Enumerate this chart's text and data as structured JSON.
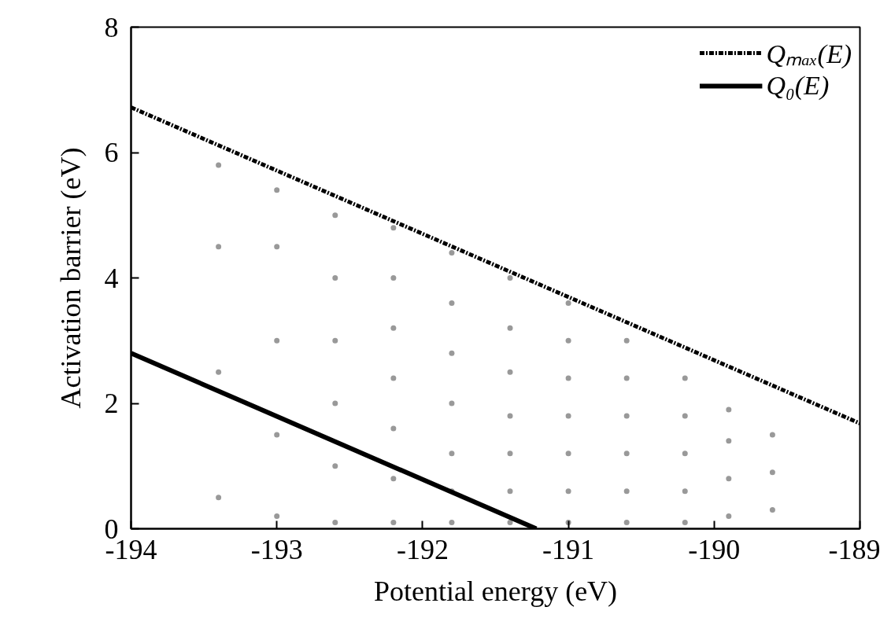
{
  "chart_data": {
    "type": "scatter",
    "xlabel": "Potential energy (eV)",
    "ylabel": "Activation barrier (eV)",
    "xlim": [
      -194,
      -189
    ],
    "xticks": [
      -194,
      -193,
      -192,
      -191,
      -190,
      -189
    ],
    "ylim": [
      0,
      8
    ],
    "yticks": [
      0,
      2,
      4,
      6,
      8
    ],
    "grid": false,
    "legend": "top right",
    "series": [
      {
        "color": "#999999",
        "marker": "circle",
        "x": [
          -193.4,
          -193.4,
          -193.4,
          -193.4,
          -193.0,
          -193.0,
          -193.0,
          -193.0,
          -193.0,
          -192.6,
          -192.6,
          -192.6,
          -192.6,
          -192.6,
          -192.6,
          -192.2,
          -192.2,
          -192.2,
          -192.2,
          -192.2,
          -192.2,
          -192.2,
          -191.8,
          -191.8,
          -191.8,
          -191.8,
          -191.8,
          -191.8,
          -191.8,
          -191.4,
          -191.4,
          -191.4,
          -191.4,
          -191.4,
          -191.4,
          -191.4,
          -191.0,
          -191.0,
          -191.0,
          -191.0,
          -191.0,
          -191.0,
          -191.0,
          -190.6,
          -190.6,
          -190.6,
          -190.6,
          -190.6,
          -190.6,
          -190.2,
          -190.2,
          -190.2,
          -190.2,
          -190.2,
          -189.9,
          -189.9,
          -189.9,
          -189.9,
          -189.6,
          -189.6,
          -189.6
        ],
        "values": [
          0.5,
          2.5,
          4.5,
          5.8,
          0.2,
          1.5,
          3.0,
          4.5,
          5.4,
          0.1,
          1.0,
          2.0,
          3.0,
          4.0,
          5.0,
          0.1,
          0.8,
          1.6,
          2.4,
          3.2,
          4.0,
          4.8,
          0.1,
          0.6,
          1.2,
          2.0,
          2.8,
          3.6,
          4.4,
          0.1,
          0.6,
          1.2,
          1.8,
          2.5,
          3.2,
          4.0,
          0.1,
          0.6,
          1.2,
          1.8,
          2.4,
          3.0,
          3.6,
          0.1,
          0.6,
          1.2,
          1.8,
          2.4,
          3.0,
          0.1,
          0.6,
          1.2,
          1.8,
          2.4,
          0.2,
          0.8,
          1.4,
          1.9,
          0.3,
          0.9,
          1.5
        ]
      },
      {
        "type": "line",
        "name": "Qₘₐₓ(E)",
        "color": "#000000",
        "line_style": "dashed",
        "x": [
          -194,
          -189
        ],
        "values": [
          6.72,
          1.68
        ]
      },
      {
        "type": "line",
        "name": "Q₀(E)",
        "color": "#000000",
        "line_style": "solid",
        "x": [
          -194,
          -191.22
        ],
        "values": [
          2.8,
          0
        ]
      }
    ]
  }
}
